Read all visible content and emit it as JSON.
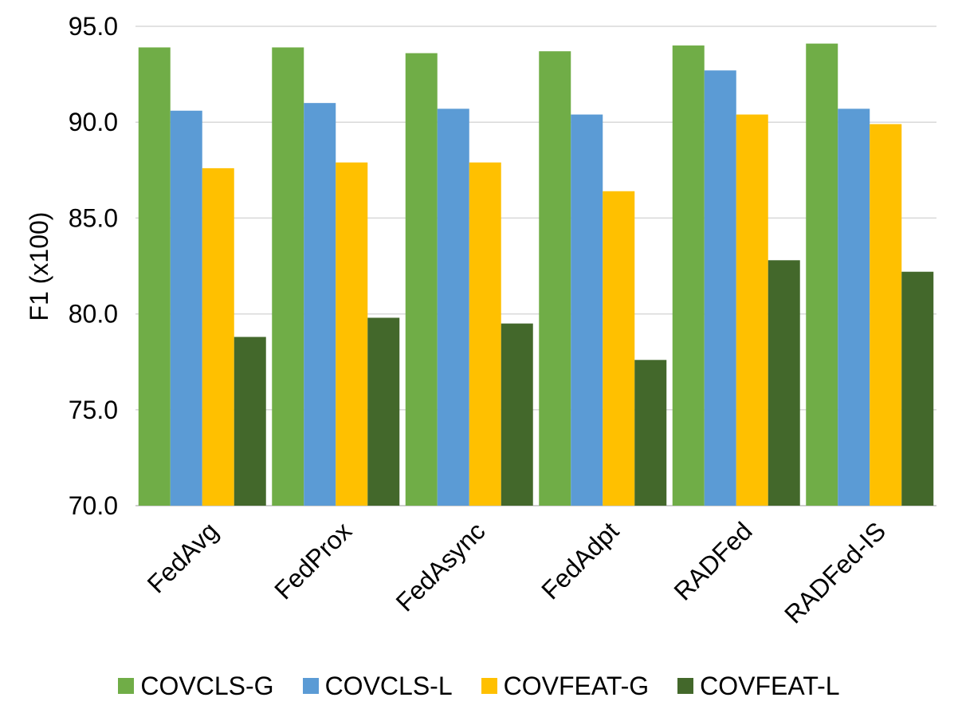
{
  "chart_data": {
    "type": "bar",
    "title": "",
    "xlabel": "",
    "ylabel": "F1 (x100)",
    "ylim": [
      70.0,
      95.0
    ],
    "yticks": [
      "70.0",
      "75.0",
      "80.0",
      "85.0",
      "90.0",
      "95.0"
    ],
    "ytick_values": [
      70,
      75,
      80,
      85,
      90,
      95
    ],
    "grid": true,
    "legend_position": "bottom",
    "categories": [
      "FedAvg",
      "FedProx",
      "FedAsync",
      "FedAdpt",
      "RADFed",
      "RADFed-IS"
    ],
    "series": [
      {
        "name": "COVCLS-G",
        "color": "#70AD47",
        "values": [
          93.9,
          93.9,
          93.6,
          93.7,
          94.0,
          94.1
        ]
      },
      {
        "name": "COVCLS-L",
        "color": "#5B9BD5",
        "values": [
          90.6,
          91.0,
          90.7,
          90.4,
          92.7,
          90.7
        ]
      },
      {
        "name": "COVFEAT-G",
        "color": "#FFC000",
        "values": [
          87.6,
          87.9,
          87.9,
          86.4,
          90.4,
          89.9
        ]
      },
      {
        "name": "COVFEAT-L",
        "color": "#43682B",
        "values": [
          78.8,
          79.8,
          79.5,
          77.6,
          82.8,
          82.2
        ]
      }
    ]
  }
}
